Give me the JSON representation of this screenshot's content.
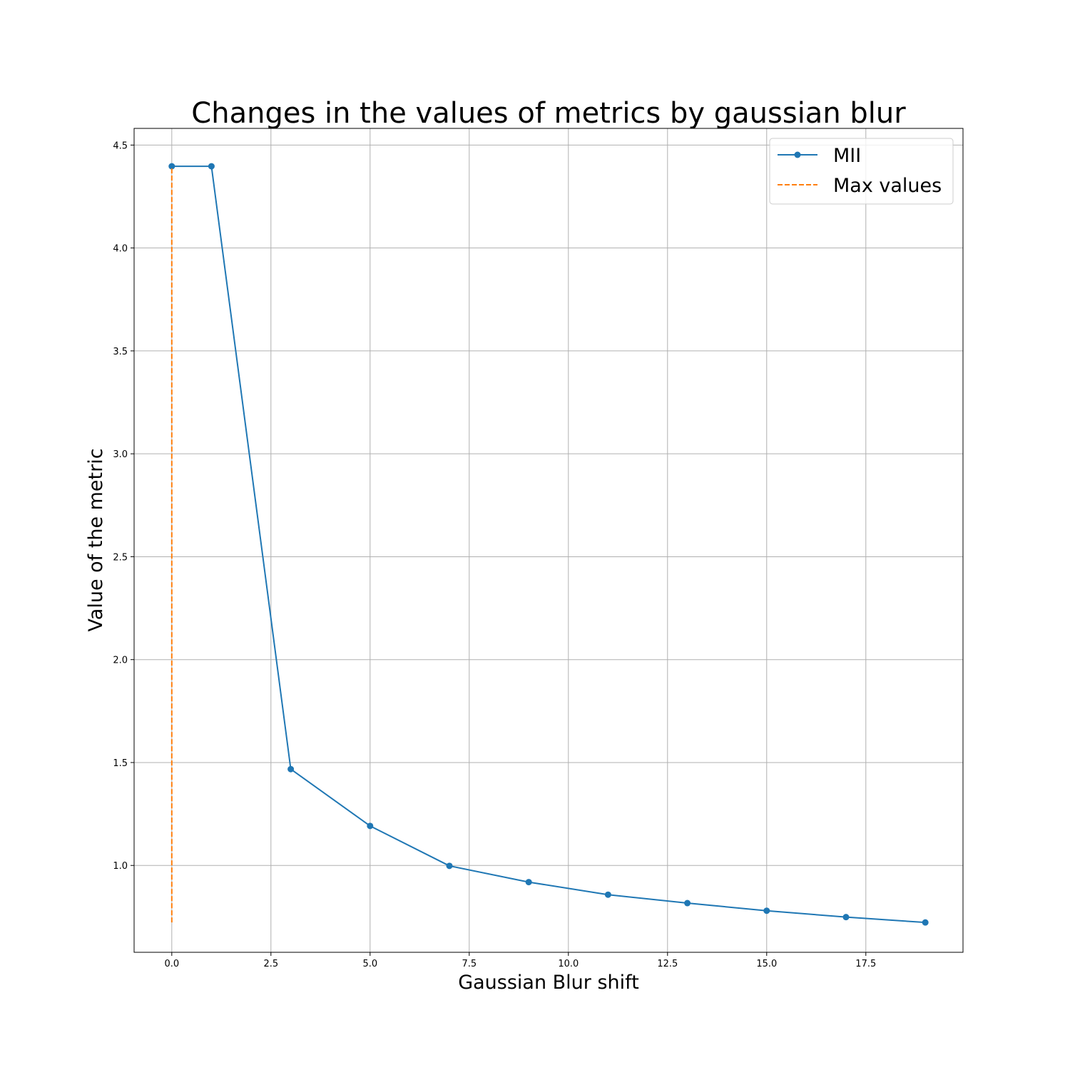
{
  "chart_data": {
    "type": "line",
    "title": "Changes in the values of metrics by gaussian blur",
    "xlabel": "Gaussian Blur shift",
    "ylabel": "Value of the metric",
    "xlim": [
      -0.95,
      19.95
    ],
    "ylim": [
      0.578,
      4.581
    ],
    "x_ticks": [
      0.0,
      2.5,
      5.0,
      7.5,
      10.0,
      12.5,
      15.0,
      17.5
    ],
    "x_tick_labels": [
      "0.0",
      "2.5",
      "5.0",
      "7.5",
      "10.0",
      "12.5",
      "15.0",
      "17.5"
    ],
    "y_ticks": [
      1.0,
      1.5,
      2.0,
      2.5,
      3.0,
      3.5,
      4.0,
      4.5
    ],
    "y_tick_labels": [
      "1.0",
      "1.5",
      "2.0",
      "2.5",
      "3.0",
      "3.5",
      "4.0",
      "4.5"
    ],
    "grid": true,
    "legend_position": "top-right",
    "series": [
      {
        "name": "MII",
        "style": "solid-markers",
        "color": "#1f77b4",
        "x": [
          0,
          1,
          3,
          5,
          7,
          9,
          11,
          13,
          15,
          17,
          19
        ],
        "y": [
          4.397,
          4.397,
          1.468,
          1.192,
          0.998,
          0.919,
          0.858,
          0.817,
          0.78,
          0.749,
          0.723
        ]
      },
      {
        "name": "Max values",
        "style": "dashed",
        "color": "#ff7f0e",
        "x": [
          0,
          0
        ],
        "y": [
          0.723,
          4.397
        ]
      }
    ]
  }
}
